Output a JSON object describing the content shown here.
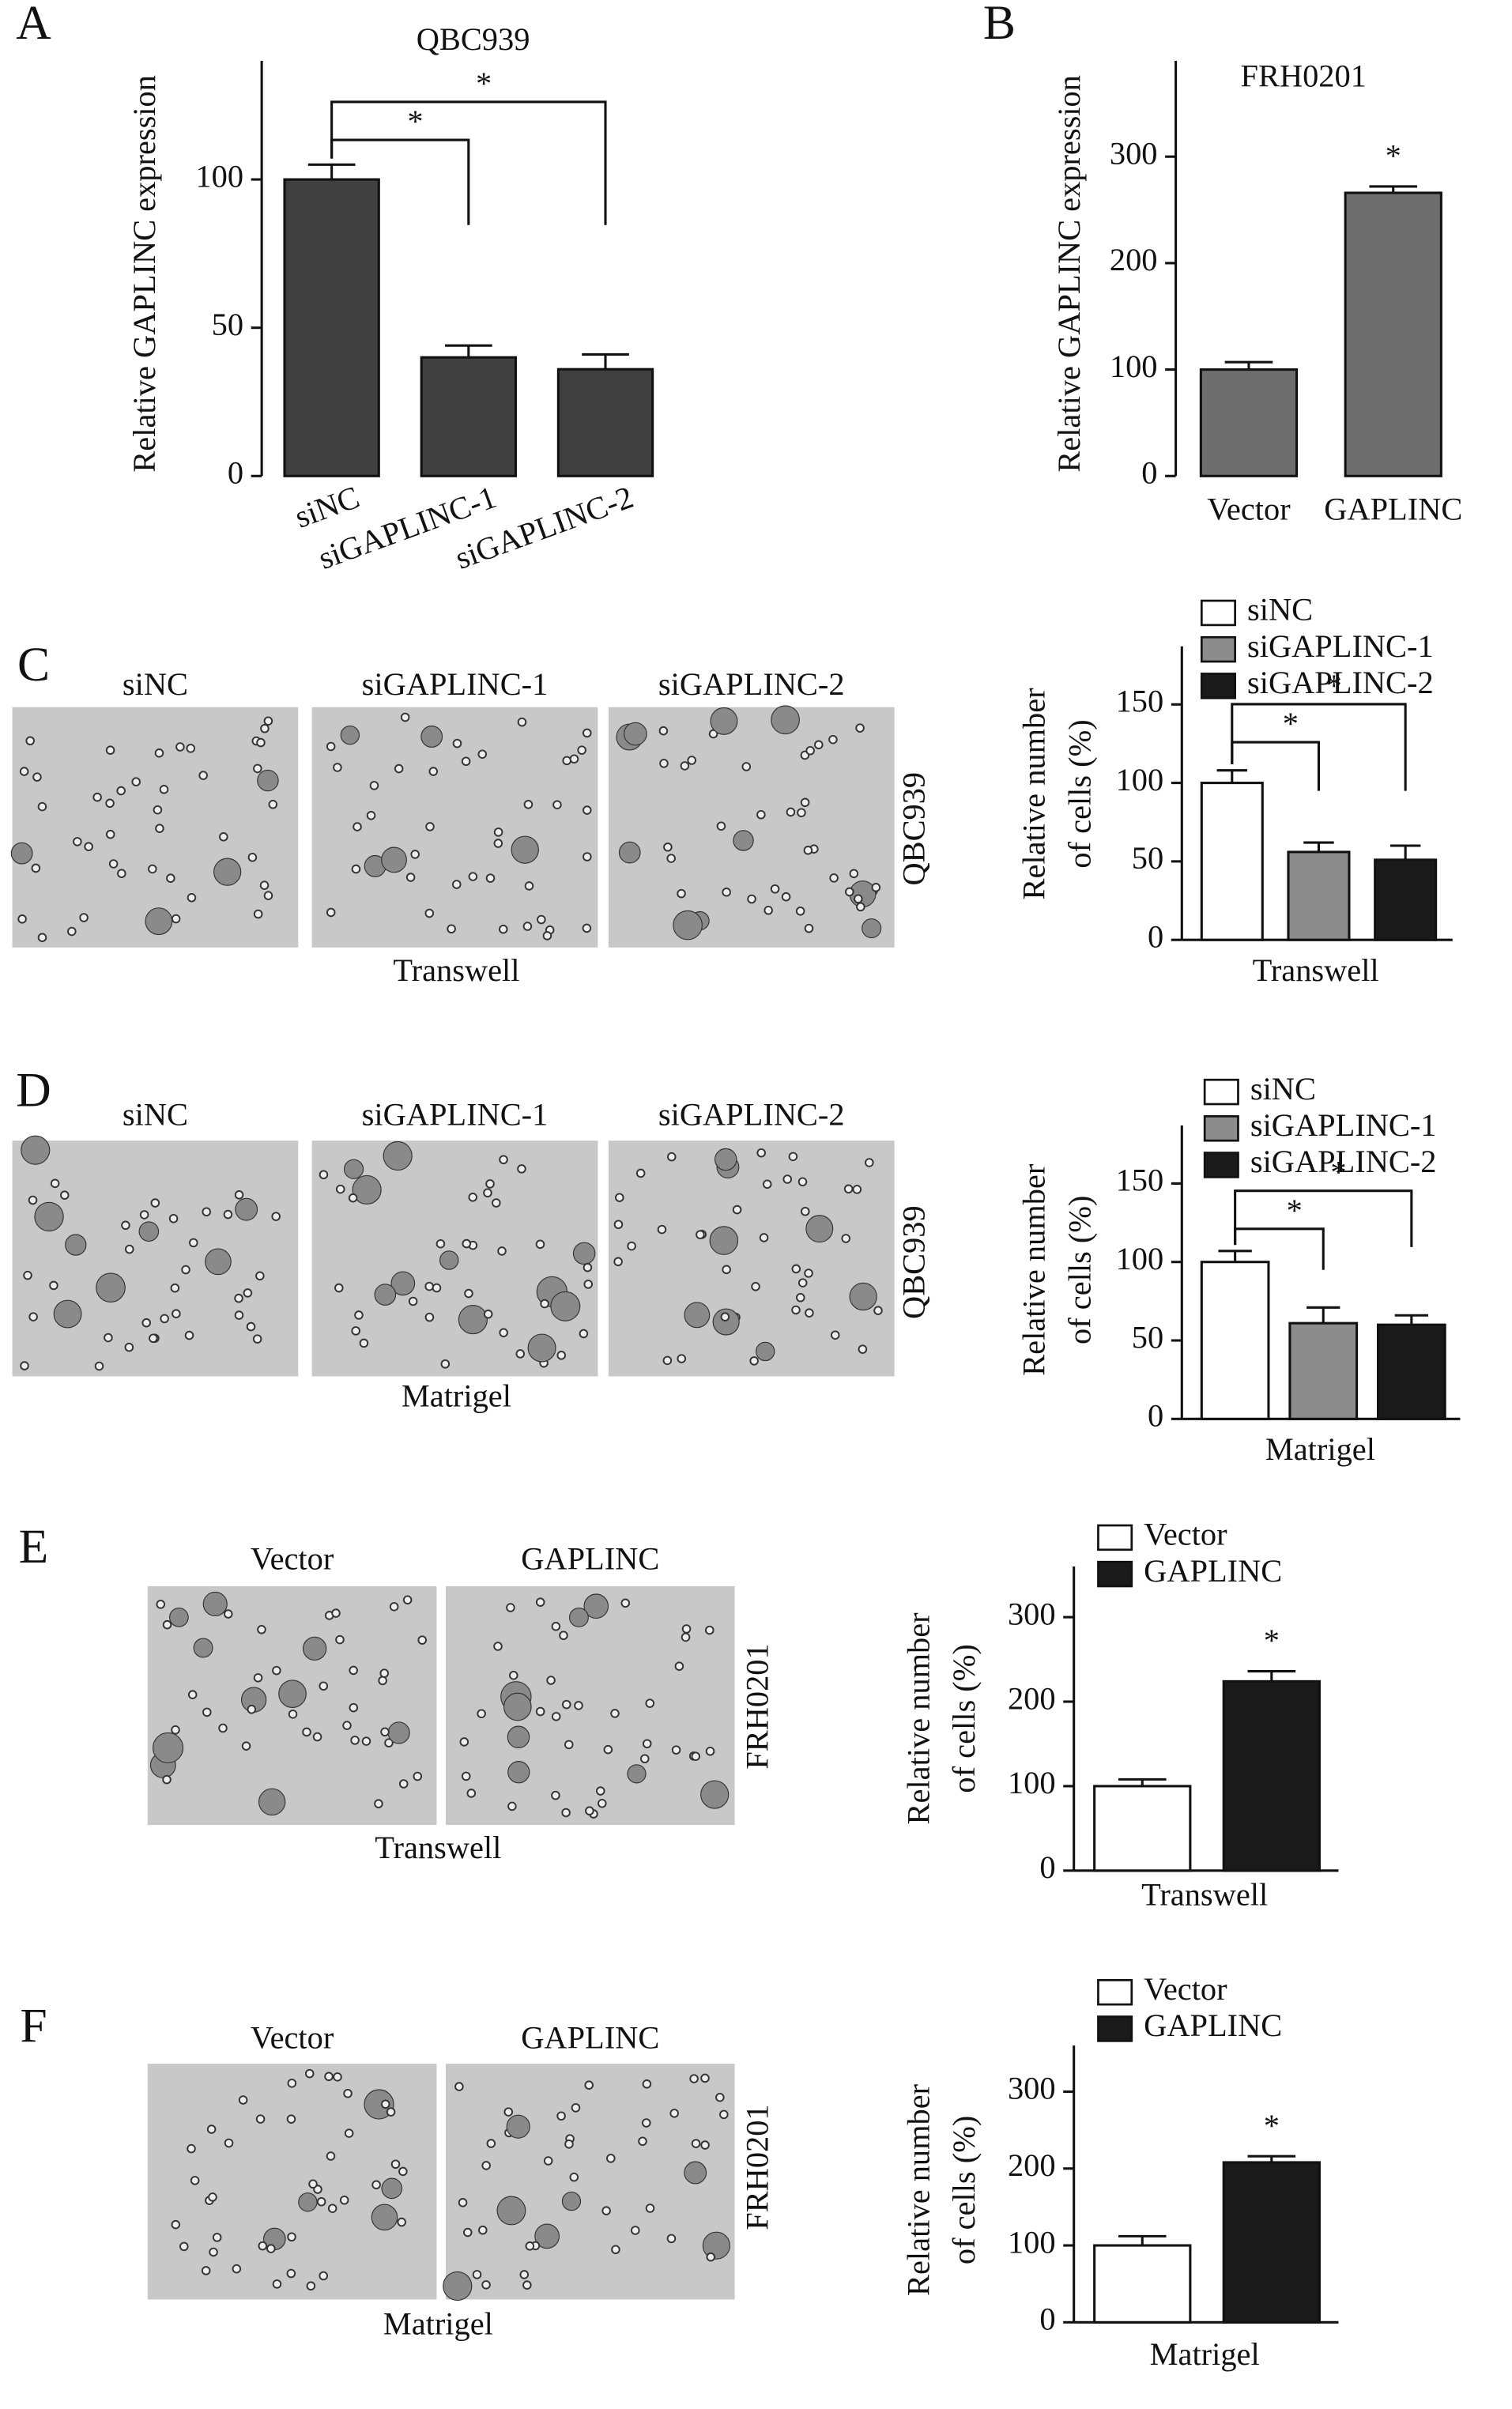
{
  "chart_data": [
    {
      "type": "bar",
      "title": "QBC939",
      "ylabel": "Relative GAPLINC expression",
      "categories": [
        "siNC",
        "siGAPLINC-1",
        "siGAPLINC-2"
      ],
      "values": [
        100,
        40,
        36
      ],
      "errors": [
        5,
        4,
        5
      ],
      "color": "#404040",
      "ylim": [
        0,
        140
      ],
      "yticks": [
        0,
        50,
        100
      ],
      "significance": [
        {
          "from": 0,
          "to": 1,
          "label": "*"
        },
        {
          "from": 0,
          "to": 2,
          "label": "*"
        }
      ]
    },
    {
      "type": "bar",
      "title": "FRH0201",
      "ylabel": "Relative GAPLINC expression",
      "categories": [
        "Vector",
        "GAPLINC"
      ],
      "values": [
        100,
        266
      ],
      "errors": [
        7,
        6
      ],
      "color": "#6e6e6e",
      "ylim": [
        0,
        390
      ],
      "yticks": [
        0,
        100,
        200,
        300
      ],
      "annotations": [
        {
          "index": 1,
          "label": "*"
        }
      ]
    },
    {
      "type": "bar",
      "ylabel_lines": [
        "Relative number",
        "of cells (%)"
      ],
      "xlabel": "Transwell",
      "series": [
        {
          "name": "siNC",
          "color": "#ffffff",
          "values": [
            100
          ],
          "errors": [
            8
          ]
        },
        {
          "name": "siGAPLINC-1",
          "color": "#8c8c8c",
          "values": [
            56
          ],
          "errors": [
            6
          ]
        },
        {
          "name": "siGAPLINC-2",
          "color": "#1a1a1a",
          "values": [
            51
          ],
          "errors": [
            9
          ]
        }
      ],
      "ylim": [
        0,
        187
      ],
      "yticks": [
        0,
        50,
        100,
        150
      ],
      "legend": "top",
      "significance": [
        {
          "from": 0,
          "to": 1,
          "label": "*"
        },
        {
          "from": 0,
          "to": 2,
          "label": "*"
        }
      ]
    },
    {
      "type": "bar",
      "ylabel_lines": [
        "Relative number",
        "of cells (%)"
      ],
      "xlabel": "Matrigel",
      "series": [
        {
          "name": "siNC",
          "color": "#ffffff",
          "values": [
            100
          ],
          "errors": [
            7
          ]
        },
        {
          "name": "siGAPLINC-1",
          "color": "#8c8c8c",
          "values": [
            61
          ],
          "errors": [
            10
          ]
        },
        {
          "name": "siGAPLINC-2",
          "color": "#1a1a1a",
          "values": [
            60
          ],
          "errors": [
            6
          ]
        }
      ],
      "ylim": [
        0,
        187
      ],
      "yticks": [
        0,
        50,
        100,
        150
      ],
      "legend": "top",
      "significance": [
        {
          "from": 0,
          "to": 1,
          "label": "*"
        },
        {
          "from": 0,
          "to": 2,
          "label": "*"
        }
      ]
    },
    {
      "type": "bar",
      "ylabel_lines": [
        "Relative number",
        "of cells (%)"
      ],
      "xlabel": "Transwell",
      "series": [
        {
          "name": "Vector",
          "color": "#ffffff",
          "values": [
            100
          ],
          "errors": [
            8
          ]
        },
        {
          "name": "GAPLINC",
          "color": "#1a1a1a",
          "values": [
            224
          ],
          "errors": [
            12
          ]
        }
      ],
      "ylim": [
        0,
        360
      ],
      "yticks": [
        0,
        100,
        200,
        300
      ],
      "legend": "top",
      "annotations": [
        {
          "index": 1,
          "label": "*"
        }
      ]
    },
    {
      "type": "bar",
      "ylabel_lines": [
        "Relative number",
        "of cells (%)"
      ],
      "xlabel": "Matrigel",
      "series": [
        {
          "name": "Vector",
          "color": "#ffffff",
          "values": [
            100
          ],
          "errors": [
            12
          ]
        },
        {
          "name": "GAPLINC",
          "color": "#1a1a1a",
          "values": [
            208
          ],
          "errors": [
            8
          ]
        }
      ],
      "ylim": [
        0,
        360
      ],
      "yticks": [
        0,
        100,
        200,
        300
      ],
      "legend": "top",
      "annotations": [
        {
          "index": 1,
          "label": "*"
        }
      ]
    }
  ],
  "panels": [
    {
      "letter": "A"
    },
    {
      "letter": "B"
    },
    {
      "letter": "C",
      "image_labels": [
        "siNC",
        "siGAPLINC-1",
        "siGAPLINC-2"
      ],
      "image_caption": "Transwell",
      "cell_line": "QBC939"
    },
    {
      "letter": "D",
      "image_labels": [
        "siNC",
        "siGAPLINC-1",
        "siGAPLINC-2"
      ],
      "image_caption": "Matrigel",
      "cell_line": "QBC939"
    },
    {
      "letter": "E",
      "image_labels": [
        "Vector",
        "GAPLINC"
      ],
      "image_caption": "Transwell",
      "cell_line": "FRH0201"
    },
    {
      "letter": "F",
      "image_labels": [
        "Vector",
        "GAPLINC"
      ],
      "image_caption": "Matrigel",
      "cell_line": "FRH0201"
    }
  ]
}
